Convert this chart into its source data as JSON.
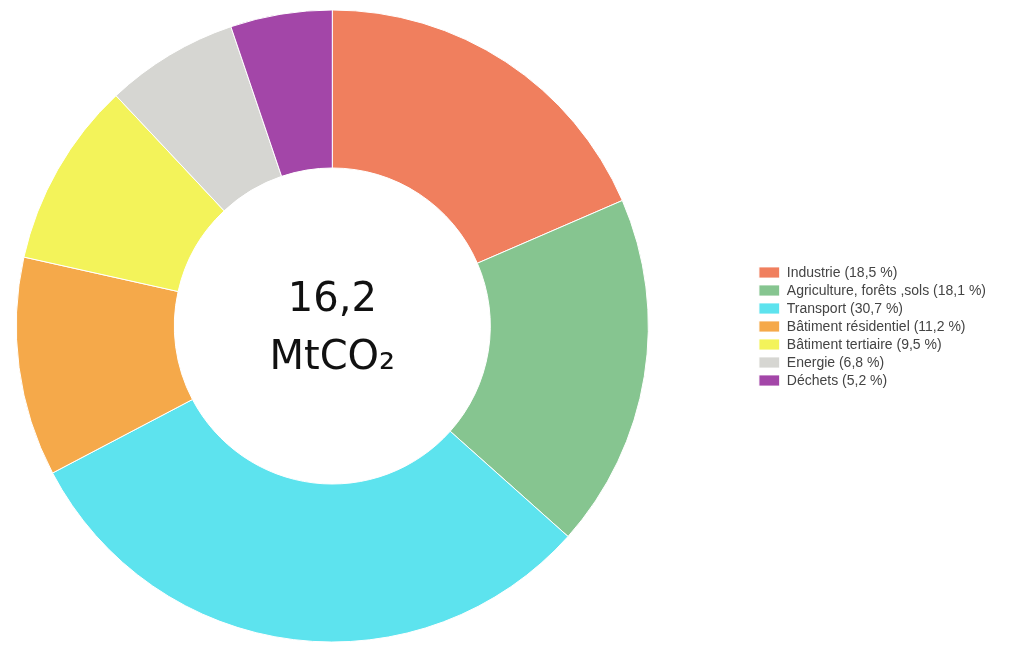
{
  "chart_data": {
    "type": "donut",
    "categories": [
      "Industrie (18,5 %)",
      "Agriculture, forêts ,sols (18,1 %)",
      "Transport (30,7 %)",
      "Bâtiment résidentiel (11,2 %)",
      "Bâtiment tertiaire (9,5 %)",
      "Energie (6,8 %)",
      "Déchets (5,2 %)"
    ],
    "values": [
      18.5,
      18.1,
      30.7,
      11.2,
      9.5,
      6.8,
      5.2
    ],
    "colors": [
      "#f07f5e",
      "#86c590",
      "#5de3ee",
      "#f5a94a",
      "#f3f35a",
      "#d6d6d2",
      "#a346a8"
    ],
    "annotations": [
      "16,2\nMtCO₂"
    ],
    "legend": "right"
  }
}
